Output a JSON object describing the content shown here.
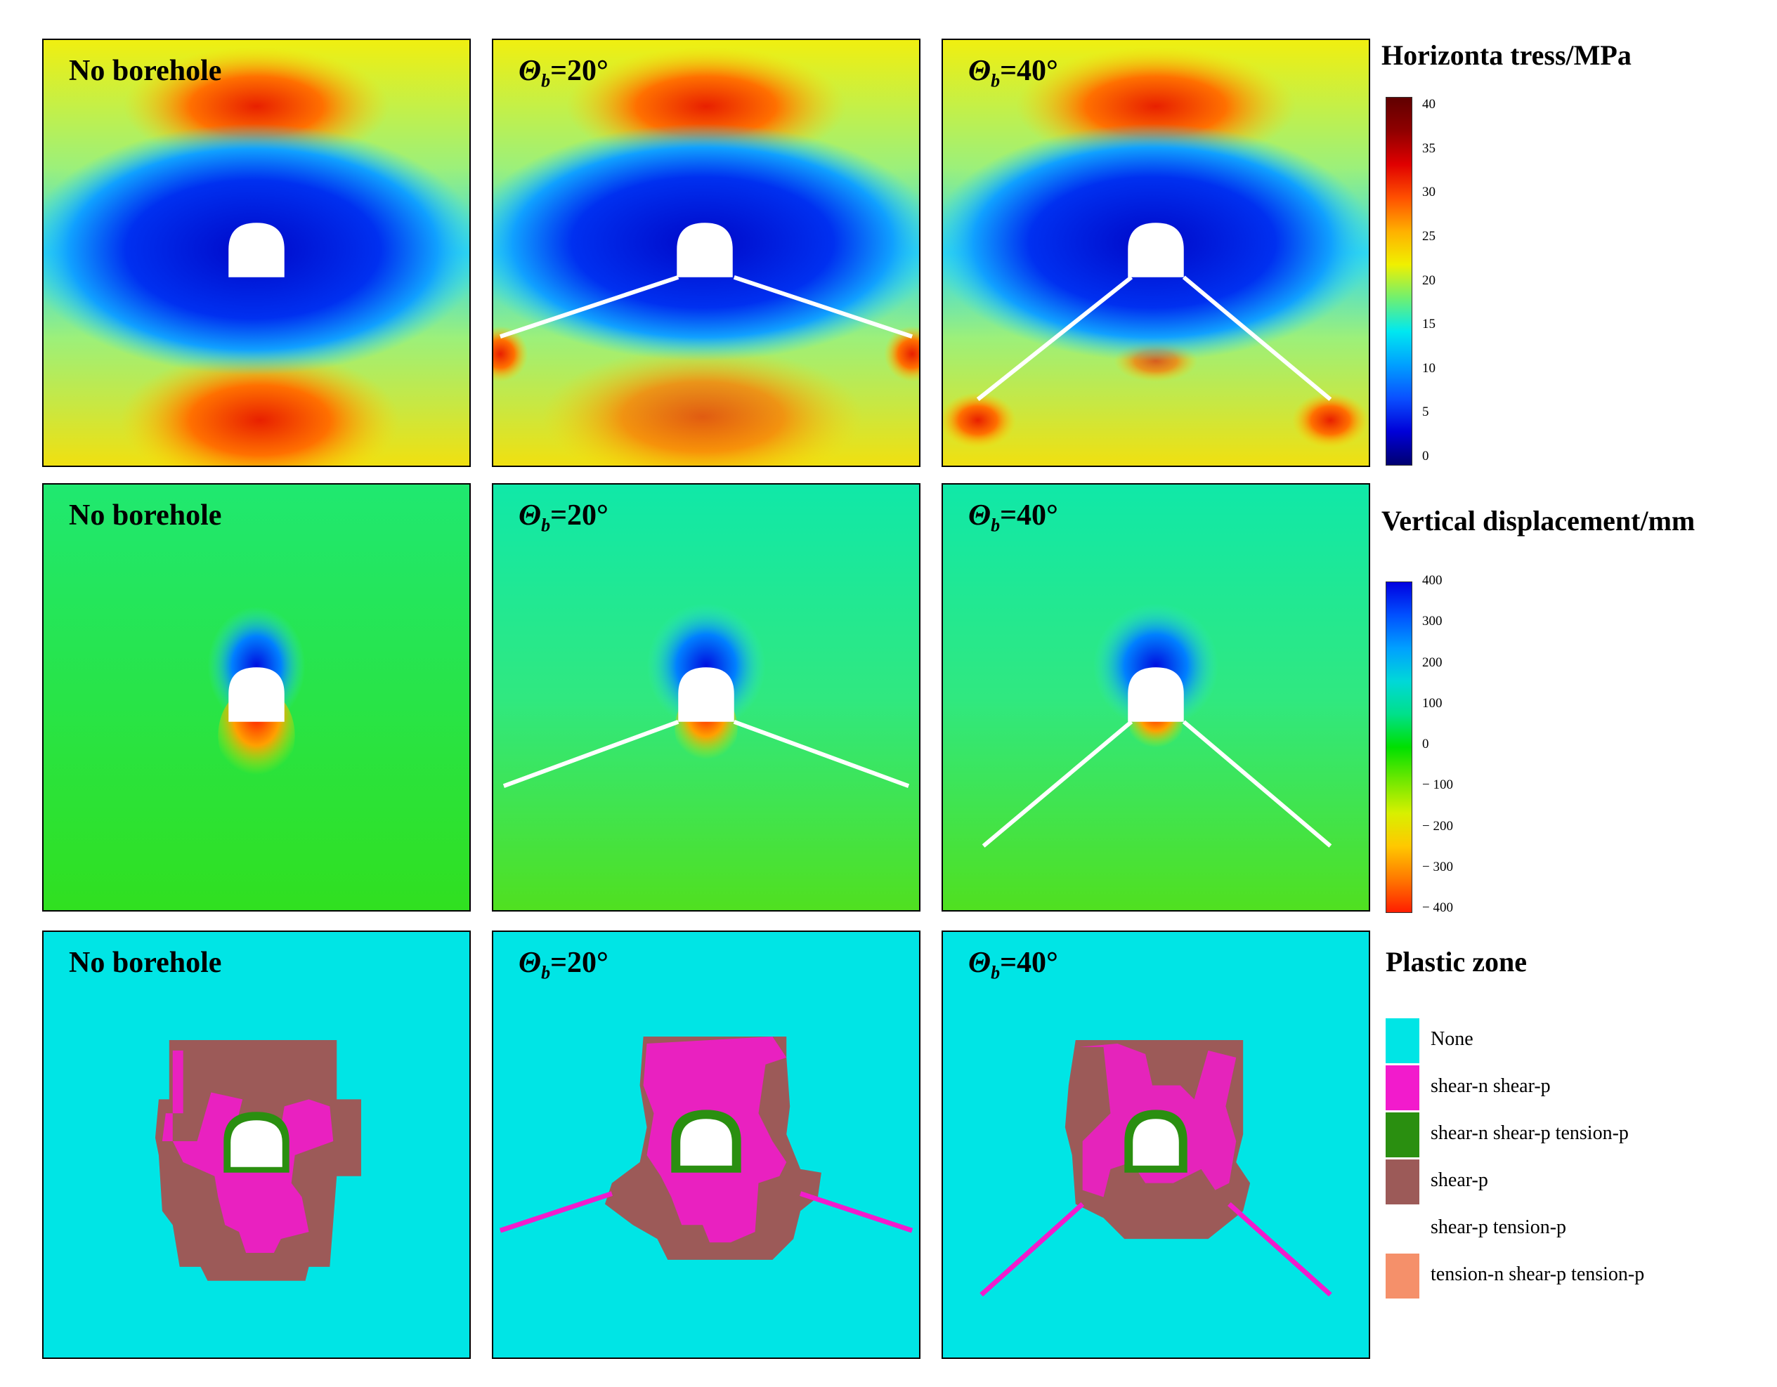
{
  "panel_labels": {
    "no_borehole": "No borehole",
    "theta_symbol": "Θ",
    "theta_sub": "b",
    "angle20": "=20°",
    "angle40": "=40°"
  },
  "stress_legend": {
    "title": "Horizonta  tress/MPa",
    "ticks": [
      "40",
      "35",
      "30",
      "25",
      "20",
      "15",
      "10",
      "5",
      "0"
    ],
    "colors": [
      "#000070",
      "#0000d8",
      "#0a50ff",
      "#00a0ff",
      "#00e8f0",
      "#70f070",
      "#f0f000",
      "#ffb000",
      "#ff5000",
      "#e00000",
      "#900000",
      "#600000"
    ]
  },
  "disp_legend": {
    "title": "Vertical displacement/mm",
    "ticks": [
      "400",
      "300",
      "200",
      "100",
      "0",
      "− 100",
      "− 200",
      "− 300",
      "− 400"
    ],
    "colors": [
      "#ff1e00",
      "#ff7800",
      "#ffc800",
      "#d8f000",
      "#70e800",
      "#00e000",
      "#00e08a",
      "#00d8d8",
      "#00a0ff",
      "#0050ff",
      "#0000e0"
    ]
  },
  "plastic_legend": {
    "title": "Plastic zone",
    "items": [
      {
        "label": "None",
        "color": "#00e5e5"
      },
      {
        "label": "shear-n shear-p",
        "color": "#f21bcc"
      },
      {
        "label": "shear-n shear-p tension-p",
        "color": "#2a8f10"
      },
      {
        "label": "shear-p",
        "color": "#9c5a58"
      },
      {
        "label": "shear-p tension-p",
        "color": "#ffffff"
      },
      {
        "label": "tension-n shear-p tension-p",
        "color": "#f5906a"
      }
    ]
  }
}
